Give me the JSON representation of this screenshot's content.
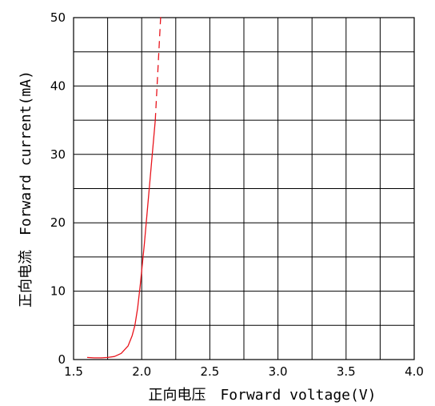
{
  "chart_data": {
    "type": "line",
    "xlabel": "正向电压　Forward voltage(V)",
    "ylabel": "正向电流　Forward current(mA)",
    "xlim": [
      1.5,
      4.0
    ],
    "ylim": [
      0,
      50
    ],
    "x_ticks": [
      1.5,
      2.0,
      2.5,
      3.0,
      3.5,
      4.0
    ],
    "x_tick_labels": [
      "1.5",
      "2.0",
      "2.5",
      "3.0",
      "3.5",
      "4.0"
    ],
    "y_ticks": [
      0,
      10,
      20,
      30,
      40,
      50
    ],
    "y_tick_labels": [
      "0",
      "10",
      "20",
      "30",
      "40",
      "50"
    ],
    "x_minor_step": 0.25,
    "y_minor_step": 5,
    "grid": true,
    "series_color": "#e8141c",
    "series": [
      {
        "style": "solid",
        "points": [
          [
            1.6,
            0.3
          ],
          [
            1.65,
            0.25
          ],
          [
            1.7,
            0.25
          ],
          [
            1.75,
            0.3
          ],
          [
            1.8,
            0.45
          ],
          [
            1.85,
            0.9
          ],
          [
            1.9,
            2.0
          ],
          [
            1.93,
            3.5
          ],
          [
            1.95,
            5.0
          ],
          [
            1.97,
            7.5
          ],
          [
            1.99,
            11.0
          ],
          [
            2.0,
            13.0
          ],
          [
            2.02,
            17.0
          ],
          [
            2.04,
            21.5
          ],
          [
            2.06,
            26.0
          ],
          [
            2.08,
            30.5
          ],
          [
            2.1,
            35.0
          ]
        ]
      },
      {
        "style": "dashed",
        "points": [
          [
            2.1,
            35.0
          ],
          [
            2.14,
            50.5
          ]
        ]
      }
    ]
  }
}
